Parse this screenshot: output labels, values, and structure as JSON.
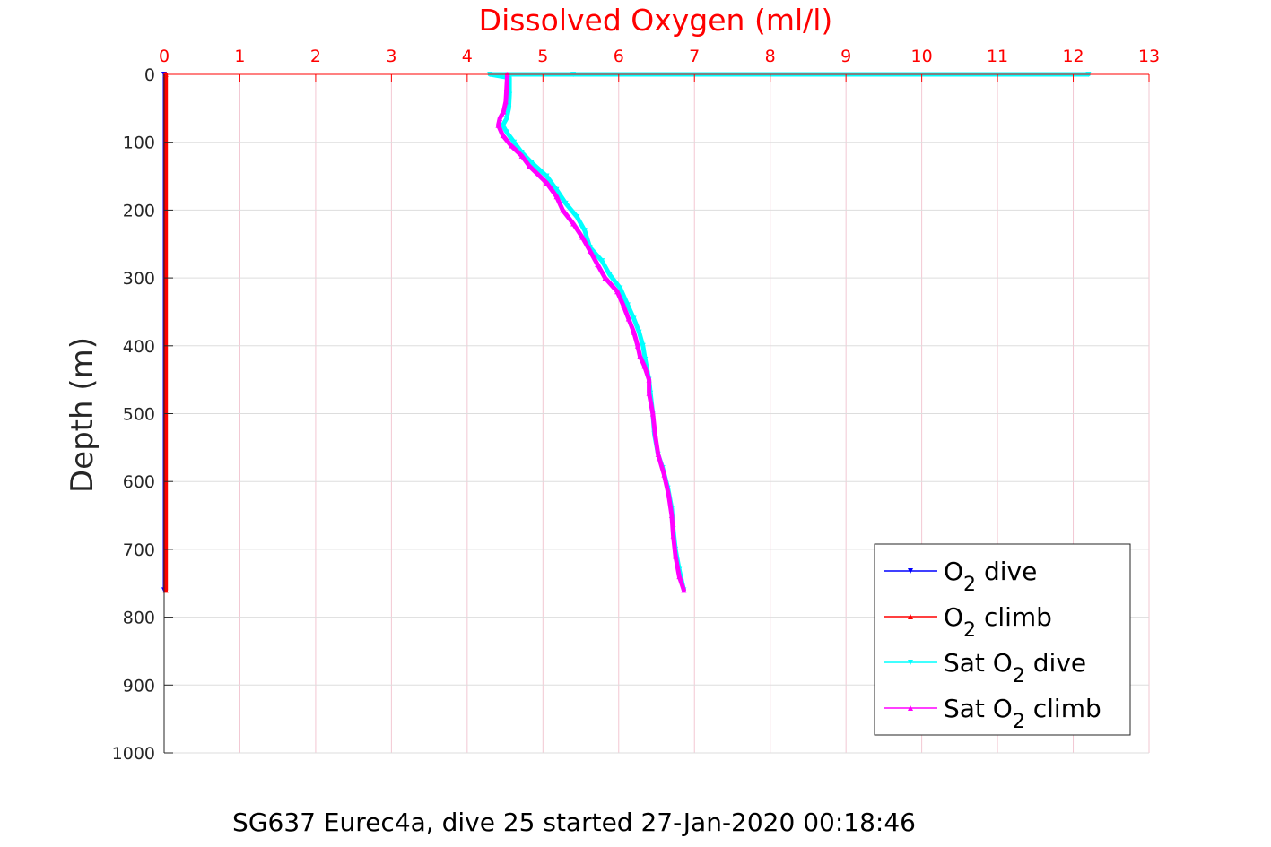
{
  "chart_data": {
    "type": "line",
    "title": "Dissolved Oxygen (ml/l)",
    "subtitle": "SG637 Eurec4a, dive 25 started 27-Jan-2020 00:18:46",
    "xlabel": "Dissolved Oxygen (ml/l)",
    "ylabel": "Depth (m)",
    "xlim": [
      0,
      13
    ],
    "ylim": [
      0,
      1000
    ],
    "y_reversed": true,
    "x_axis_position": "top",
    "xticks": [
      "0",
      "1",
      "2",
      "3",
      "4",
      "5",
      "6",
      "7",
      "8",
      "9",
      "10",
      "11",
      "12",
      "13"
    ],
    "yticks": [
      "0",
      "100",
      "200",
      "300",
      "400",
      "500",
      "600",
      "700",
      "800",
      "900",
      "1000"
    ],
    "grid": true,
    "legend_position": "bottom-right",
    "colors": {
      "axis_x": "#ff0000",
      "axis_y": "#262626",
      "title": "#ff0000",
      "grid_x": "#f2c7d2",
      "grid_y": "#dddddd"
    },
    "series": [
      {
        "name": "O2 dive",
        "legend": {
          "pre": "O",
          "sub": "2",
          "post": " dive"
        },
        "color": "#0000ff",
        "x": [
          0,
          0
        ],
        "y": [
          0,
          760
        ]
      },
      {
        "name": "O2 climb",
        "legend": {
          "pre": "O",
          "sub": "2",
          "post": " climb"
        },
        "color": "#ff0000",
        "x": [
          0.02,
          0.02
        ],
        "y": [
          0,
          760
        ]
      },
      {
        "name": "Sat O2 dive",
        "legend": {
          "pre": "Sat O",
          "sub": "2",
          "post": " dive"
        },
        "color": "#00ffff",
        "x": [
          12.2,
          5.4,
          4.3,
          4.56,
          4.56,
          4.55,
          4.52,
          4.47,
          4.52,
          4.62,
          4.72,
          4.85,
          5.05,
          5.18,
          5.3,
          5.45,
          5.55,
          5.62,
          5.78,
          5.88,
          6.02,
          6.12,
          6.2,
          6.27,
          6.32,
          6.35,
          6.4,
          6.42,
          6.45,
          6.47,
          6.52,
          6.58,
          6.65,
          6.7,
          6.72,
          6.75,
          6.8,
          6.86
        ],
        "y": [
          0,
          0,
          0,
          5,
          30,
          50,
          65,
          75,
          85,
          100,
          115,
          130,
          150,
          170,
          190,
          210,
          230,
          255,
          275,
          295,
          315,
          340,
          360,
          380,
          400,
          420,
          450,
          470,
          500,
          530,
          560,
          580,
          610,
          640,
          670,
          700,
          730,
          760
        ]
      },
      {
        "name": "Sat O2 climb",
        "legend": {
          "pre": "Sat O",
          "sub": "2",
          "post": " climb"
        },
        "color": "#ff00ff",
        "x": [
          4.53,
          4.52,
          4.51,
          4.48,
          4.43,
          4.41,
          4.47,
          4.58,
          4.72,
          4.82,
          5.05,
          5.18,
          5.26,
          5.4,
          5.52,
          5.62,
          5.72,
          5.82,
          5.98,
          6.06,
          6.13,
          6.2,
          6.25,
          6.28,
          6.34,
          6.4,
          6.4,
          6.45,
          6.48,
          6.52,
          6.6,
          6.66,
          6.7,
          6.72,
          6.75,
          6.8,
          6.86
        ],
        "y": [
          0,
          20,
          40,
          55,
          65,
          75,
          90,
          105,
          120,
          135,
          160,
          180,
          200,
          220,
          240,
          260,
          280,
          300,
          320,
          340,
          360,
          380,
          400,
          415,
          430,
          450,
          470,
          500,
          530,
          560,
          590,
          620,
          650,
          680,
          710,
          740,
          760
        ]
      }
    ]
  }
}
